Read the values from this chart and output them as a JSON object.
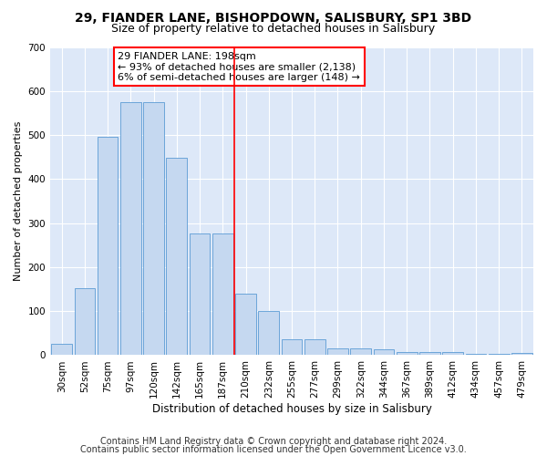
{
  "title1": "29, FIANDER LANE, BISHOPDOWN, SALISBURY, SP1 3BD",
  "title2": "Size of property relative to detached houses in Salisbury",
  "xlabel": "Distribution of detached houses by size in Salisbury",
  "ylabel": "Number of detached properties",
  "categories": [
    "30sqm",
    "52sqm",
    "75sqm",
    "97sqm",
    "120sqm",
    "142sqm",
    "165sqm",
    "187sqm",
    "210sqm",
    "232sqm",
    "255sqm",
    "277sqm",
    "299sqm",
    "322sqm",
    "344sqm",
    "367sqm",
    "389sqm",
    "412sqm",
    "434sqm",
    "457sqm",
    "479sqm"
  ],
  "values": [
    25,
    153,
    497,
    575,
    575,
    448,
    277,
    277,
    140,
    100,
    37,
    37,
    15,
    15,
    13,
    8,
    8,
    8,
    2,
    2,
    5
  ],
  "bar_color": "#c5d8f0",
  "bar_edge_color": "#5b9bd5",
  "vline_color": "red",
  "vline_index": 8,
  "annotation_title": "29 FIANDER LANE: 198sqm",
  "annotation_line1": "← 93% of detached houses are smaller (2,138)",
  "annotation_line2": "6% of semi-detached houses are larger (148) →",
  "annotation_box_color": "#ffffff",
  "annotation_box_edge": "red",
  "ylim": [
    0,
    700
  ],
  "yticks": [
    0,
    100,
    200,
    300,
    400,
    500,
    600,
    700
  ],
  "footer1": "Contains HM Land Registry data © Crown copyright and database right 2024.",
  "footer2": "Contains public sector information licensed under the Open Government Licence v3.0.",
  "plot_bg_color": "#dde8f8",
  "grid_color": "#ffffff",
  "title1_fontsize": 10,
  "title2_fontsize": 9,
  "xlabel_fontsize": 8.5,
  "ylabel_fontsize": 8,
  "tick_fontsize": 7.5,
  "annotation_fontsize": 8,
  "footer_fontsize": 7
}
